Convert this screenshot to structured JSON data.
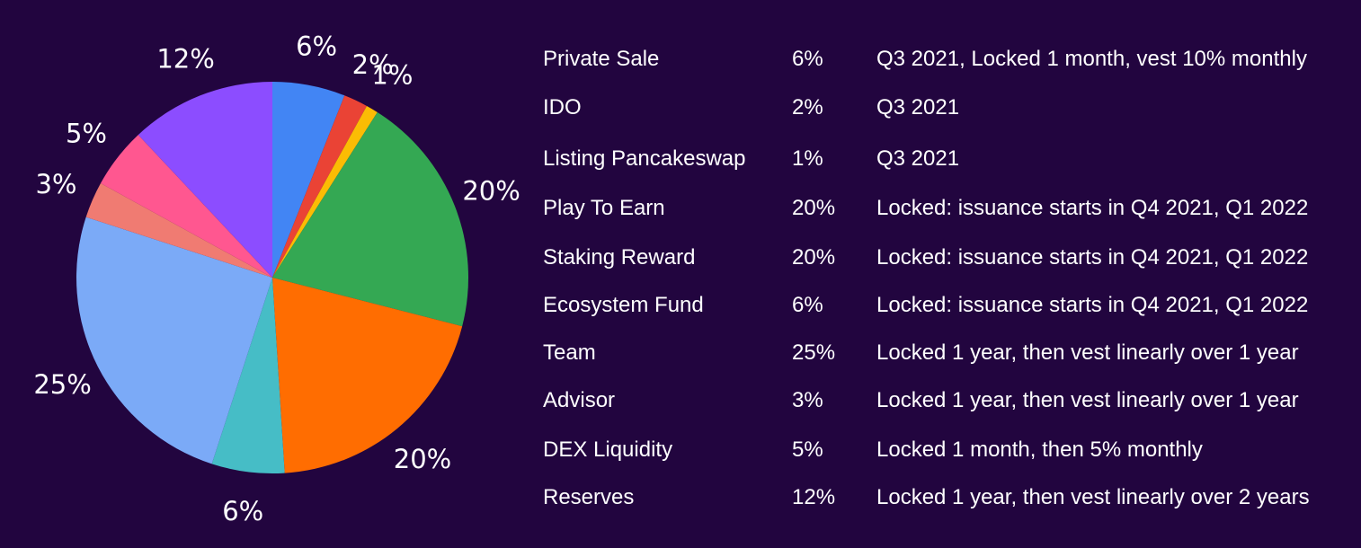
{
  "chart_data": {
    "type": "pie",
    "slices": [
      {
        "label": "6%",
        "value": 6,
        "color": "#4285f4"
      },
      {
        "label": "2%",
        "value": 2,
        "color": "#ea4335"
      },
      {
        "label": "1%",
        "value": 1,
        "color": "#fbbc04"
      },
      {
        "label": "20%",
        "value": 20,
        "color": "#34a853"
      },
      {
        "label": "20%",
        "value": 20,
        "color": "#ff6d01"
      },
      {
        "label": "6%",
        "value": 6,
        "color": "#46bdc6"
      },
      {
        "label": "25%",
        "value": 25,
        "color": "#7baaf7"
      },
      {
        "label": "3%",
        "value": 3,
        "color": "#f07b72"
      },
      {
        "label": "5%",
        "value": 5,
        "color": "#ff5790"
      },
      {
        "label": "12%",
        "value": 12,
        "color": "#8c4dff"
      }
    ],
    "start": "12 o'clock",
    "direction": "clockwise",
    "legend": "none"
  },
  "allocation_table": [
    {
      "name": "Private Sale",
      "percent": "6%",
      "schedule": "Q3 2021, Locked 1 month, vest 10% monthly"
    },
    {
      "name": "IDO",
      "percent": "2%",
      "schedule": "Q3 2021"
    },
    {
      "name": "Listing Pancakeswap",
      "percent": "1%",
      "schedule": "Q3 2021"
    },
    {
      "name": "Play To Earn",
      "percent": "20%",
      "schedule": "Locked: issuance starts in Q4 2021, Q1 2022"
    },
    {
      "name": "Staking Reward",
      "percent": "20%",
      "schedule": "Locked: issuance starts in Q4 2021, Q1 2022"
    },
    {
      "name": "Ecosystem Fund",
      "percent": "6%",
      "schedule": "Locked: issuance starts in Q4 2021, Q1 2022"
    },
    {
      "name": "Team",
      "percent": "25%",
      "schedule": "Locked 1 year, then vest linearly over 1 year"
    },
    {
      "name": "Advisor",
      "percent": "3%",
      "schedule": "Locked 1 year, then vest linearly over 1 year"
    },
    {
      "name": "DEX Liquidity",
      "percent": "5%",
      "schedule": "Locked 1 month, then 5% monthly"
    },
    {
      "name": "Reserves",
      "percent": "12%",
      "schedule": "Locked 1 year, then vest linearly over 2 years"
    }
  ]
}
